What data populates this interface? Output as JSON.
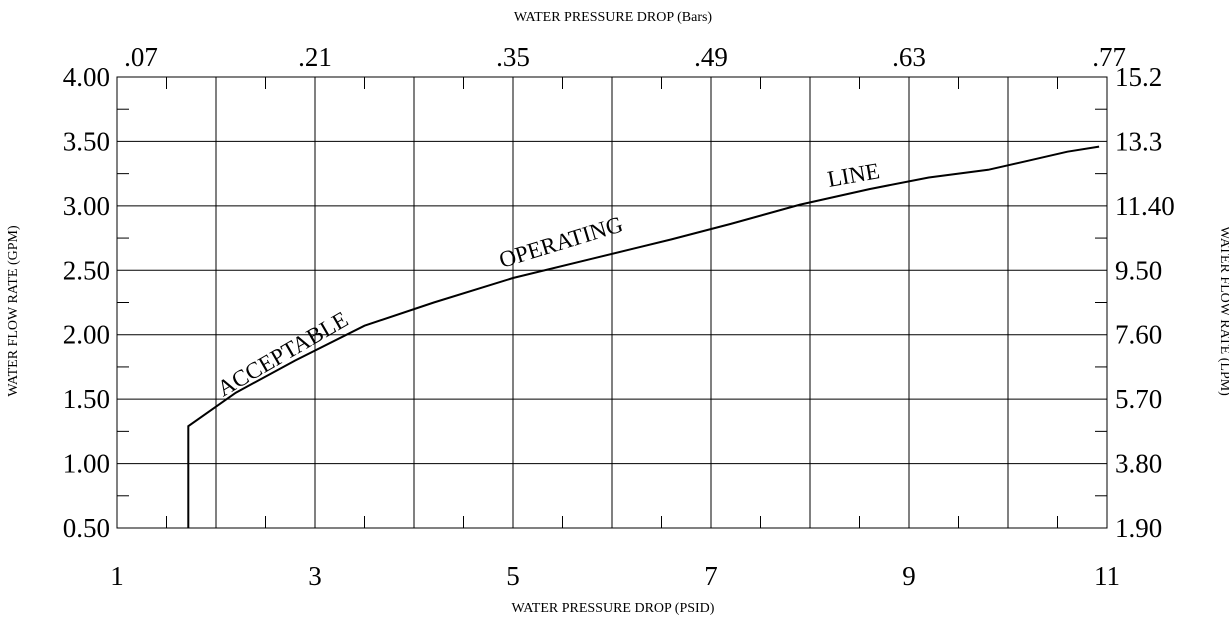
{
  "chart_data": {
    "type": "line",
    "top_axis_title": "WATER PRESSURE DROP (Bars)",
    "bottom_axis_title": "WATER PRESSURE DROP (PSID)",
    "left_axis_title": "WATER FLOW RATE (GPM)",
    "right_axis_title": "WATER FLOW RATE (LPM)",
    "xlim": [
      1,
      11
    ],
    "ylim": [
      0.5,
      4.0
    ],
    "grid": true,
    "x_ticks": [
      "1",
      "3",
      "5",
      "7",
      "9",
      "11"
    ],
    "y_ticks": [
      "0.50",
      "1.00",
      "1.50",
      "2.00",
      "2.50",
      "3.00",
      "3.50",
      "4.00"
    ],
    "top_ticks": [
      ".07",
      ".21",
      ".35",
      ".49",
      ".63",
      ".77"
    ],
    "right_ticks": [
      "1.90",
      "3.80",
      "5.70",
      "7.60",
      "9.50",
      "11.40",
      "13.3",
      "15.2"
    ],
    "curve_labels": [
      "ACCEPTABLE",
      "OPERATING",
      "LINE"
    ],
    "series": [
      {
        "x": [
          1.72,
          1.72,
          2.2,
          2.8,
          3.5,
          4.2,
          5.0,
          5.8,
          6.6,
          7.2,
          7.9,
          8.6,
          9.2,
          9.8,
          10.2,
          10.6,
          10.92
        ],
        "y": [
          0.5,
          1.29,
          1.55,
          1.8,
          2.07,
          2.25,
          2.44,
          2.59,
          2.74,
          2.86,
          3.01,
          3.13,
          3.22,
          3.28,
          3.35,
          3.42,
          3.46
        ]
      }
    ]
  }
}
